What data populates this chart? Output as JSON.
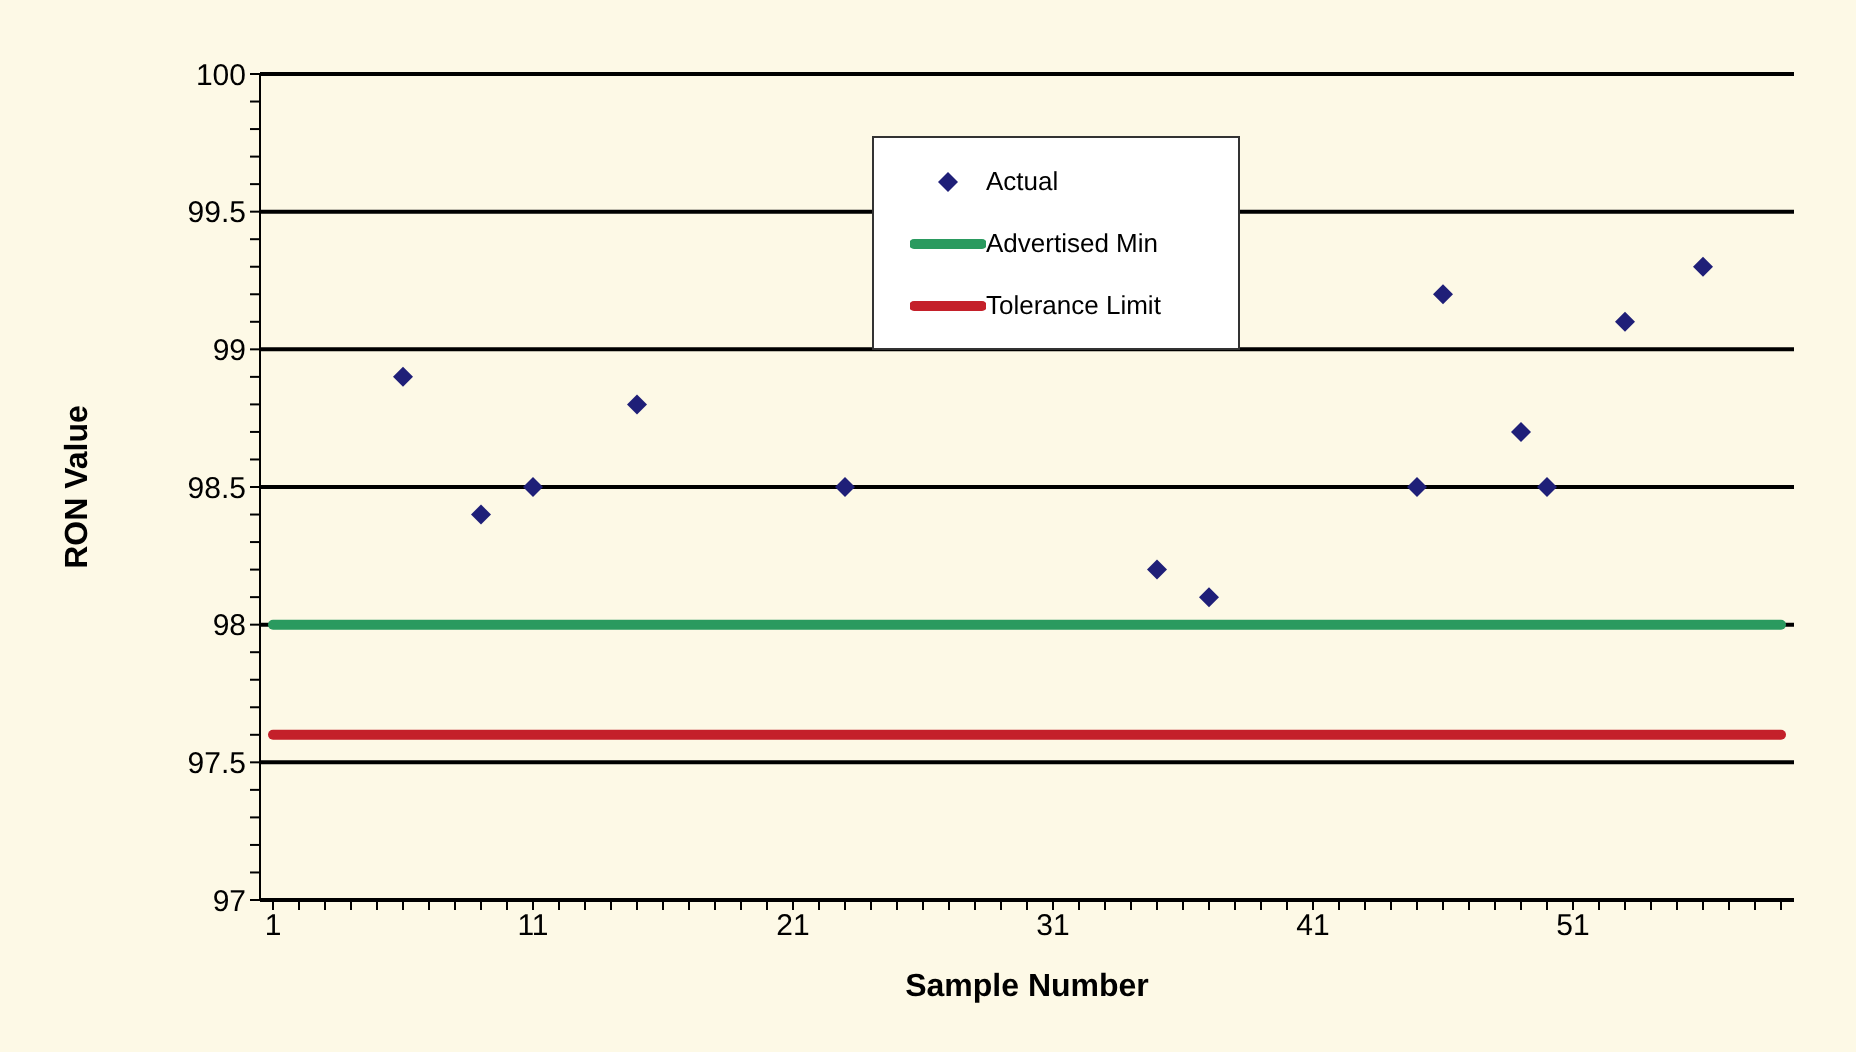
{
  "chart_data": {
    "type": "scatter",
    "xlabel": "Sample Number",
    "ylabel": "RON Value",
    "xlim": [
      0.5,
      59.5
    ],
    "xticks": [
      1,
      {
        "value": 2,
        "label": null
      },
      {
        "value": 3,
        "label": null
      },
      {
        "value": 4,
        "label": null
      },
      {
        "value": 5,
        "label": null
      },
      {
        "value": 6,
        "label": null
      },
      {
        "value": 7,
        "label": null
      },
      {
        "value": 8,
        "label": null
      },
      {
        "value": 9,
        "label": null
      },
      {
        "value": 10,
        "label": null
      },
      11,
      {
        "value": 12,
        "label": null
      },
      {
        "value": 13,
        "label": null
      },
      {
        "value": 14,
        "label": null
      },
      {
        "value": 15,
        "label": null
      },
      {
        "value": 16,
        "label": null
      },
      {
        "value": 17,
        "label": null
      },
      {
        "value": 18,
        "label": null
      },
      {
        "value": 19,
        "label": null
      },
      {
        "value": 20,
        "label": null
      },
      21,
      {
        "value": 22,
        "label": null
      },
      {
        "value": 23,
        "label": null
      },
      {
        "value": 24,
        "label": null
      },
      {
        "value": 25,
        "label": null
      },
      {
        "value": 26,
        "label": null
      },
      {
        "value": 27,
        "label": null
      },
      {
        "value": 28,
        "label": null
      },
      {
        "value": 29,
        "label": null
      },
      {
        "value": 30,
        "label": null
      },
      31,
      {
        "value": 32,
        "label": null
      },
      {
        "value": 33,
        "label": null
      },
      {
        "value": 34,
        "label": null
      },
      {
        "value": 35,
        "label": null
      },
      {
        "value": 36,
        "label": null
      },
      {
        "value": 37,
        "label": null
      },
      {
        "value": 38,
        "label": null
      },
      {
        "value": 39,
        "label": null
      },
      {
        "value": 40,
        "label": null
      },
      41,
      {
        "value": 42,
        "label": null
      },
      {
        "value": 43,
        "label": null
      },
      {
        "value": 44,
        "label": null
      },
      {
        "value": 45,
        "label": null
      },
      {
        "value": 46,
        "label": null
      },
      {
        "value": 47,
        "label": null
      },
      {
        "value": 48,
        "label": null
      },
      {
        "value": 49,
        "label": null
      },
      {
        "value": 50,
        "label": null
      },
      51,
      {
        "value": 52,
        "label": null
      },
      {
        "value": 53,
        "label": null
      },
      {
        "value": 54,
        "label": null
      },
      {
        "value": 55,
        "label": null
      },
      {
        "value": 56,
        "label": null
      },
      {
        "value": 57,
        "label": null
      },
      {
        "value": 58,
        "label": null
      },
      {
        "value": 59,
        "label": null
      }
    ],
    "ylim": [
      97,
      100
    ],
    "yticks": [
      97,
      {
        "value": 97.1,
        "label": null
      },
      {
        "value": 97.2,
        "label": null
      },
      {
        "value": 97.3,
        "label": null
      },
      {
        "value": 97.4,
        "label": null
      },
      97.5,
      {
        "value": 97.6,
        "label": null
      },
      {
        "value": 97.7,
        "label": null
      },
      {
        "value": 97.8,
        "label": null
      },
      {
        "value": 97.9,
        "label": null
      },
      98,
      {
        "value": 98.1,
        "label": null
      },
      {
        "value": 98.2,
        "label": null
      },
      {
        "value": 98.3,
        "label": null
      },
      {
        "value": 98.4,
        "label": null
      },
      98.5,
      {
        "value": 98.6,
        "label": null
      },
      {
        "value": 98.7,
        "label": null
      },
      {
        "value": 98.8,
        "label": null
      },
      {
        "value": 98.9,
        "label": null
      },
      99,
      {
        "value": 99.1,
        "label": null
      },
      {
        "value": 99.2,
        "label": null
      },
      {
        "value": 99.3,
        "label": null
      },
      {
        "value": 99.4,
        "label": null
      },
      99.5,
      {
        "value": 99.6,
        "label": null
      },
      {
        "value": 99.7,
        "label": null
      },
      {
        "value": 99.8,
        "label": null
      },
      {
        "value": 99.9,
        "label": null
      },
      100
    ],
    "grid": "y",
    "legend": "top",
    "series": [
      {
        "name": "Actual",
        "marker": "diamond",
        "color": "#1f1f78",
        "x": [
          6,
          9,
          11,
          15,
          23,
          35,
          37,
          45,
          46,
          49,
          50,
          53,
          56
        ],
        "values": [
          98.9,
          98.4,
          98.5,
          98.8,
          98.5,
          98.2,
          98.1,
          98.5,
          99.2,
          98.7,
          98.5,
          99.1,
          99.3
        ]
      },
      {
        "name": "Advertised Min",
        "type": "line",
        "marker": "none",
        "color": "#2a9a5f",
        "x": [
          1,
          59
        ],
        "values": [
          98,
          98
        ]
      },
      {
        "name": "Tolerance Limit",
        "type": "line",
        "marker": "none",
        "color": "#c4202a",
        "x": [
          1,
          59
        ],
        "values": [
          97.6,
          97.6
        ]
      }
    ]
  }
}
